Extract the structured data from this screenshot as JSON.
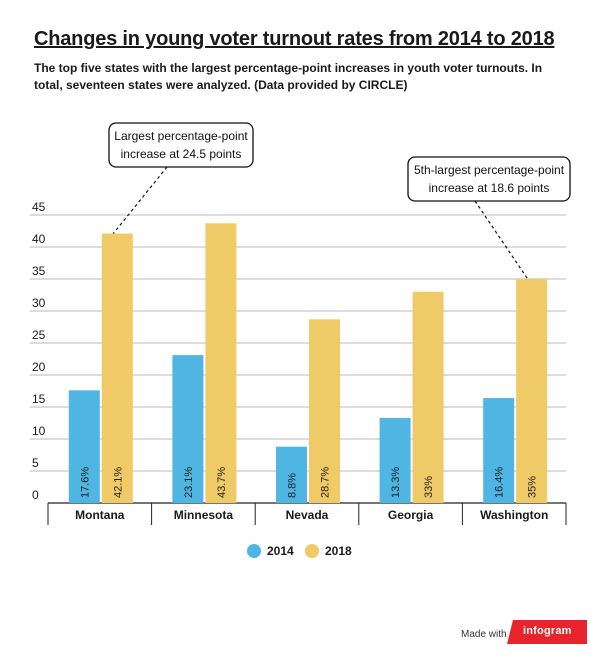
{
  "title": "Changes in young voter turnout rates from 2014 to 2018",
  "subtitle": "The top five states with the largest percentage-point increases in youth voter turnouts. In total, seventeen states were analyzed. (Data provided by CIRCLE)",
  "footer": {
    "made_with": "Made with",
    "brand": "infogram"
  },
  "colors": {
    "s2014": "#4fb5e2",
    "s2018": "#f0ca66",
    "grid": "#b8b8b8",
    "axis": "#222222",
    "logo": "#e8232c"
  },
  "chart_data": {
    "type": "bar",
    "categories": [
      "Montana",
      "Minnesota",
      "Nevada",
      "Georgia",
      "Washington"
    ],
    "series": [
      {
        "name": "2014",
        "values": [
          17.6,
          23.1,
          8.8,
          13.3,
          16.4
        ],
        "labels": [
          "17.6%",
          "23.1%",
          "8.8%",
          "13.3%",
          "16.4%"
        ]
      },
      {
        "name": "2018",
        "values": [
          42.1,
          43.7,
          28.7,
          33,
          35
        ],
        "labels": [
          "42.1%",
          "43.7%",
          "28.7%",
          "33%",
          "35%"
        ]
      }
    ],
    "ylim": [
      0,
      45
    ],
    "yticks": [
      0,
      5,
      10,
      15,
      20,
      25,
      30,
      35,
      40,
      45
    ],
    "grid": true,
    "legend_position": "bottom",
    "annotations": [
      {
        "lines": [
          "Largest percentage-point",
          "increase at 24.5 points"
        ],
        "category": "Montana"
      },
      {
        "lines": [
          "5th-largest percentage-point",
          "increase at 18.6 points"
        ],
        "category": "Washington"
      }
    ]
  }
}
